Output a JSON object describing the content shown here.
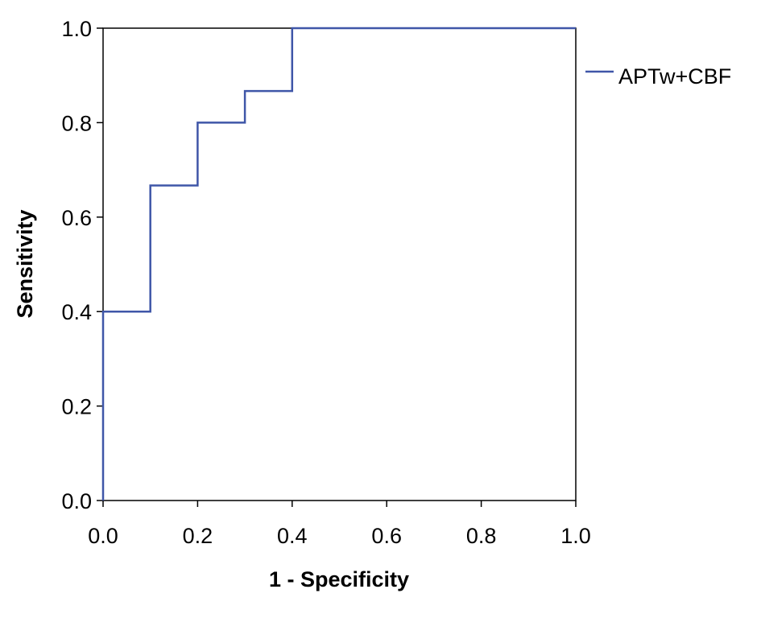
{
  "chart_data": {
    "type": "line",
    "line_style": "step",
    "xlabel": "1 - Specificity",
    "ylabel": "Sensitivity",
    "xlim": [
      0.0,
      1.0
    ],
    "ylim": [
      0.0,
      1.0
    ],
    "x_ticks": [
      "0.0",
      "0.2",
      "0.4",
      "0.6",
      "0.8",
      "1.0"
    ],
    "y_ticks": [
      "0.0",
      "0.2",
      "0.4",
      "0.6",
      "0.8",
      "1.0"
    ],
    "grid": false,
    "legend_position": "right",
    "series": [
      {
        "name": "APTw+CBF",
        "color": "#3f56a8",
        "points": [
          {
            "x": 0.0,
            "y": 0.0
          },
          {
            "x": 0.0,
            "y": 0.4
          },
          {
            "x": 0.1,
            "y": 0.4
          },
          {
            "x": 0.1,
            "y": 0.667
          },
          {
            "x": 0.2,
            "y": 0.667
          },
          {
            "x": 0.2,
            "y": 0.8
          },
          {
            "x": 0.3,
            "y": 0.8
          },
          {
            "x": 0.3,
            "y": 0.867
          },
          {
            "x": 0.4,
            "y": 0.867
          },
          {
            "x": 0.4,
            "y": 1.0
          },
          {
            "x": 1.0,
            "y": 1.0
          }
        ]
      }
    ]
  }
}
